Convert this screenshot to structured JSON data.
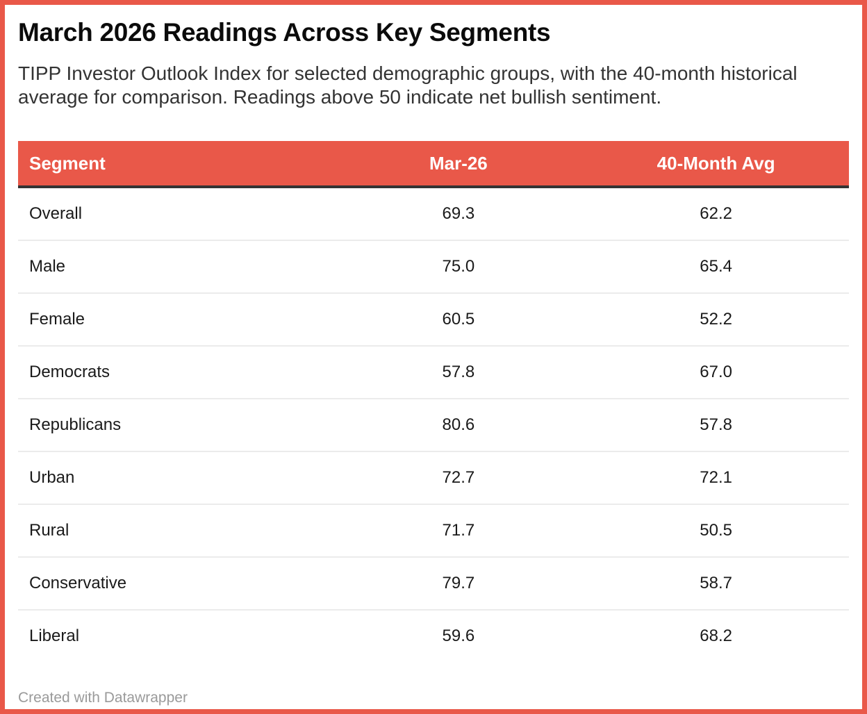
{
  "header": {
    "title": "March 2026 Readings Across Key Segments",
    "subtitle": "TIPP Investor Outlook Index for selected demographic groups, with the 40-month historical average for comparison. Readings above 50 indicate net bullish sentiment."
  },
  "chart_data": {
    "type": "table",
    "title": "March 2026 Readings Across Key Segments",
    "columns": [
      "Segment",
      "Mar-26",
      "40-Month Avg"
    ],
    "rows": [
      [
        "Overall",
        "69.3",
        "62.2"
      ],
      [
        "Male",
        "75.0",
        "65.4"
      ],
      [
        "Female",
        "60.5",
        "52.2"
      ],
      [
        "Democrats",
        "57.8",
        "67.0"
      ],
      [
        "Republicans",
        "80.6",
        "57.8"
      ],
      [
        "Urban",
        "72.7",
        "72.1"
      ],
      [
        "Rural",
        "71.7",
        "50.5"
      ],
      [
        "Conservative",
        "79.7",
        "58.7"
      ],
      [
        "Liberal",
        "59.6",
        "68.2"
      ]
    ]
  },
  "footer": {
    "credit": "Created with Datawrapper"
  },
  "colors": {
    "accent": "#E95849",
    "header_text": "#FFFFFF",
    "divider_dark": "#333333",
    "row_divider": "#EBEBEB",
    "body_text": "#1A1A1A",
    "footer_text": "#9A9A9A"
  }
}
